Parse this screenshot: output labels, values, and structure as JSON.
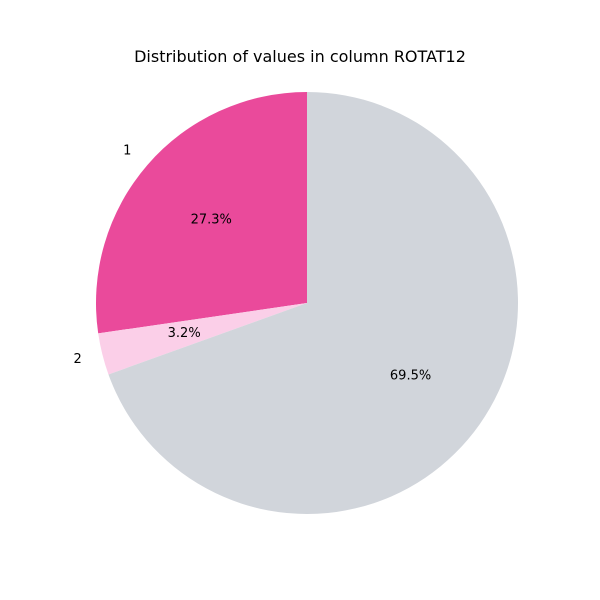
{
  "chart_data": {
    "type": "pie",
    "title": "Distribution of values in column ROTAT12",
    "slices": [
      {
        "label": "1",
        "value": 27.3,
        "pct_label": "27.3%",
        "color": "#ea4a9b"
      },
      {
        "label": "2",
        "value": 3.2,
        "pct_label": "3.2%",
        "color": "#fbcfe8"
      },
      {
        "label": "",
        "value": 69.5,
        "pct_label": "69.5%",
        "color": "#d1d5db"
      }
    ],
    "start_angle_deg": 90,
    "direction": "counterclockwise",
    "legend": "none"
  }
}
